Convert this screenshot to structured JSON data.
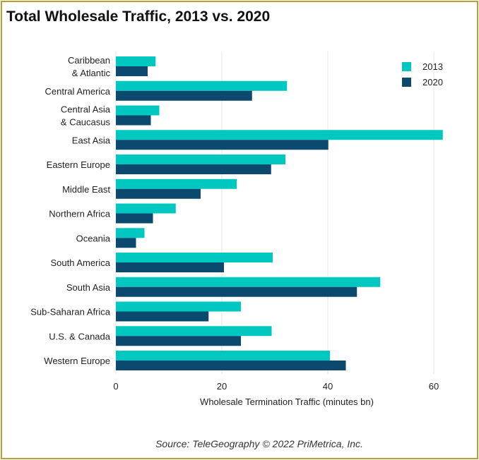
{
  "title": "Total Wholesale Traffic, 2013 vs. 2020",
  "source": "Source: TeleGeography © 2022 PriMetrica, Inc.",
  "colors": {
    "s2013": "#00c7c0",
    "s2020": "#0b4a6e",
    "frame": "#b8a132",
    "grid": "#e6e6e6"
  },
  "chart_data": {
    "type": "bar",
    "orientation": "horizontal",
    "title": "Total Wholesale Traffic, 2013 vs. 2020",
    "xlabel": "Wholesale Termination Traffic (minutes bn)",
    "ylabel": "",
    "xlim": [
      0,
      62
    ],
    "xticks": [
      0,
      20,
      40,
      60
    ],
    "grid": true,
    "legend": "top-right",
    "categories": [
      [
        "Caribbean",
        "& Atlantic"
      ],
      [
        "Central America"
      ],
      [
        "Central Asia",
        "& Caucasus"
      ],
      [
        "East Asia"
      ],
      [
        "Eastern Europe"
      ],
      [
        "Middle East"
      ],
      [
        "Northern Africa"
      ],
      [
        "Oceania"
      ],
      [
        "South America"
      ],
      [
        "South Asia"
      ],
      [
        "Sub-Saharan Africa"
      ],
      [
        "U.S. & Canada"
      ],
      [
        "Western Europe"
      ]
    ],
    "series": [
      {
        "name": "2013",
        "values": [
          7.5,
          32.3,
          8.2,
          61.7,
          32.0,
          22.8,
          11.3,
          5.4,
          29.6,
          49.9,
          23.6,
          29.4,
          40.4
        ]
      },
      {
        "name": "2020",
        "values": [
          6.0,
          25.7,
          6.6,
          40.1,
          29.3,
          16.0,
          7.0,
          3.8,
          20.4,
          45.5,
          17.5,
          23.6,
          43.4
        ]
      }
    ]
  }
}
